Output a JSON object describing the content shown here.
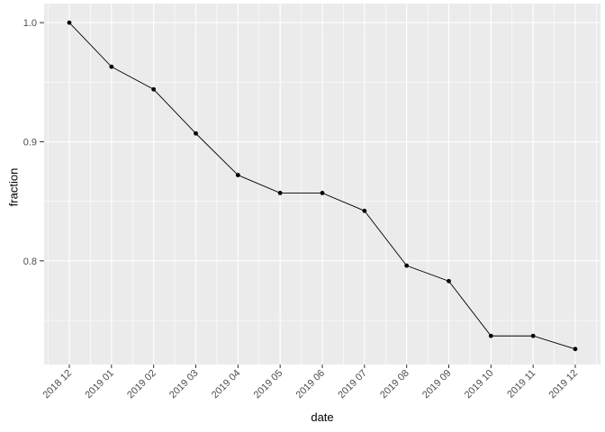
{
  "chart_data": {
    "type": "line",
    "title": "",
    "xlabel": "date",
    "ylabel": "fraction",
    "categories": [
      "2018 12",
      "2019 01",
      "2019 02",
      "2019 03",
      "2019 04",
      "2019 05",
      "2019 06",
      "2019 07",
      "2019 08",
      "2019 09",
      "2019 10",
      "2019 11",
      "2019 12"
    ],
    "series": [
      {
        "name": "fraction",
        "values": [
          1.0,
          0.963,
          0.944,
          0.907,
          0.872,
          0.857,
          0.857,
          0.842,
          0.796,
          0.783,
          0.737,
          0.737,
          0.726
        ]
      }
    ],
    "y_ticks": [
      0.8,
      0.9,
      1.0
    ],
    "y_tick_labels": [
      "0.8",
      "0.9",
      "1.0"
    ],
    "y_minor_breaks": [
      0.75,
      0.85,
      0.95
    ],
    "ylim": [
      0.713,
      1.016
    ],
    "x_tick_angle_deg": 45,
    "grid": "major-and-minor",
    "legend_position": "none",
    "style": {
      "figure_bg": "#ffffff",
      "panel_bg": "#ebebeb",
      "grid_major_color": "#ffffff",
      "grid_minor_color": "#ffffff",
      "line_color": "#000000",
      "point_color": "#000000",
      "axis_tick_color": "#333333",
      "tick_label_color": "#4d4d4d",
      "axis_title_color": "#000000"
    }
  }
}
